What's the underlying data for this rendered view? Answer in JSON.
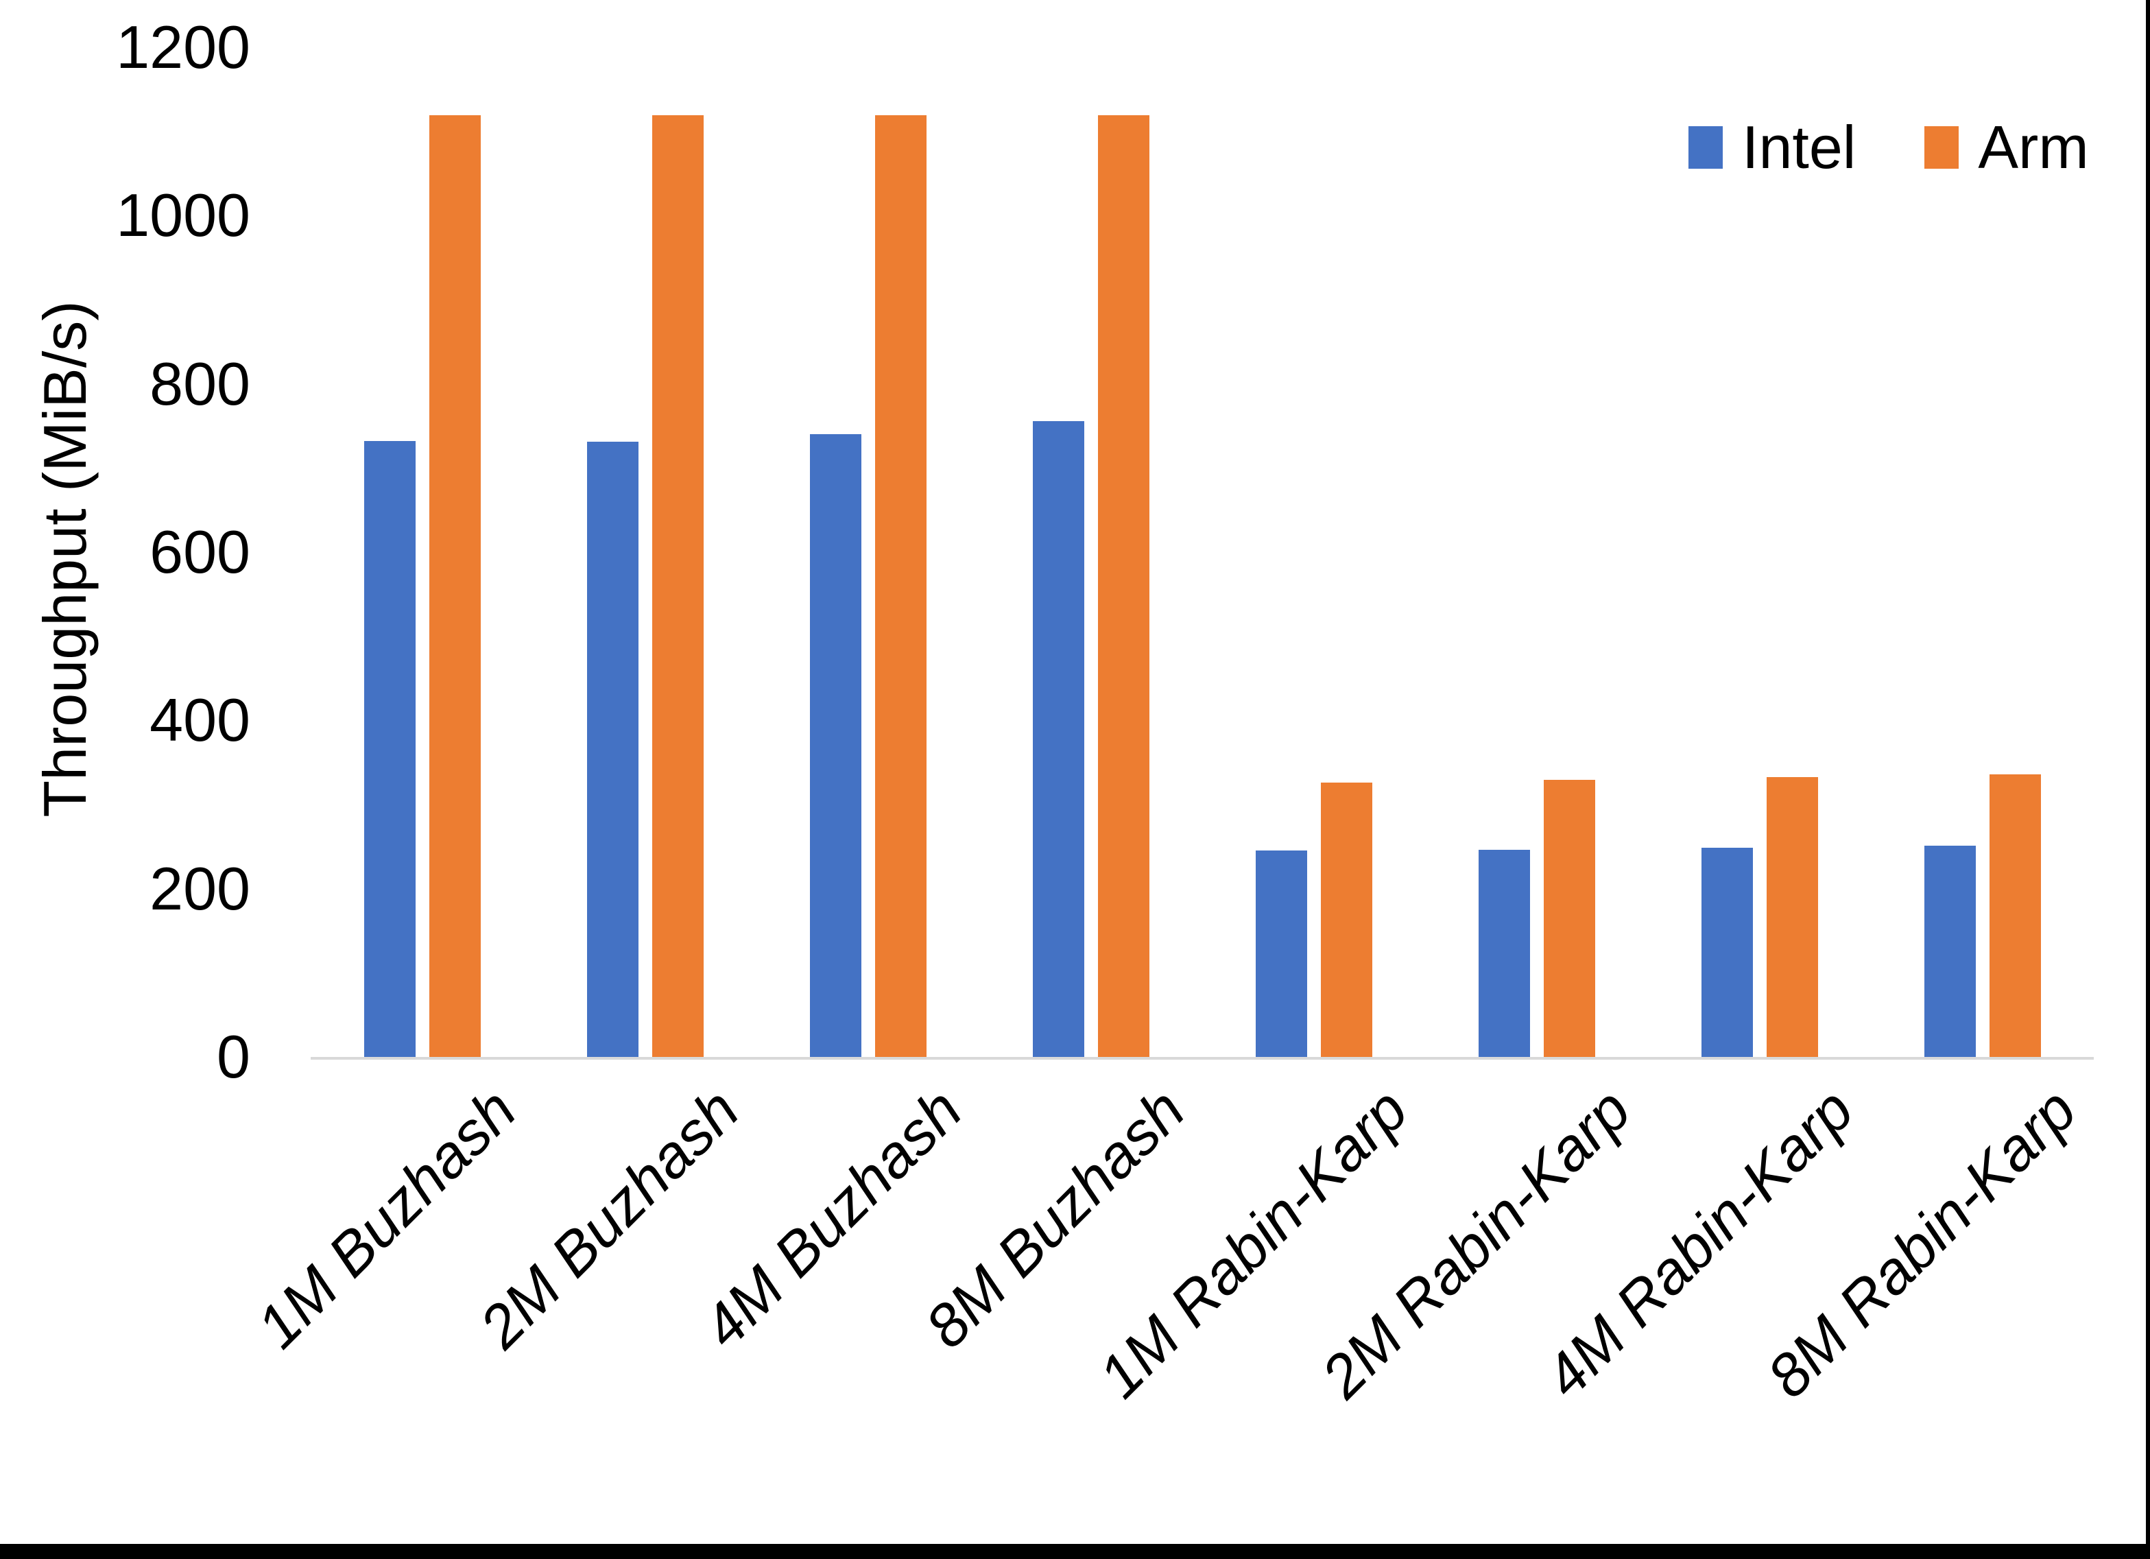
{
  "colors": {
    "intel": "#4472C4",
    "arm": "#ED7D31",
    "axis_line": "#D9D9D9",
    "border": "#000000",
    "text": "#000000"
  },
  "legend": {
    "position": "top-right"
  },
  "chart_data": {
    "type": "bar",
    "title": "",
    "xlabel": "",
    "ylabel": "Throughput (MiB/s)",
    "ylim": [
      0,
      1200
    ],
    "yticks": [
      "0",
      "200",
      "400",
      "600",
      "800",
      "1000",
      "1200"
    ],
    "grid": false,
    "legend_position": "top-right",
    "categories": [
      "1M Buzhash",
      "2M Buzhash",
      "4M Buzhash",
      "8M Buzhash",
      "1M Rabin-Karp",
      "2M Rabin-Karp",
      "4M Rabin-Karp",
      "8M Rabin-Karp"
    ],
    "series": [
      {
        "name": "Intel",
        "color": "#4472C4",
        "values": [
          732,
          731,
          740,
          756,
          245,
          246,
          249,
          251
        ]
      },
      {
        "name": "Arm",
        "color": "#ED7D31",
        "values": [
          1119,
          1119,
          1119,
          1119,
          326,
          329,
          333,
          336
        ]
      }
    ]
  }
}
